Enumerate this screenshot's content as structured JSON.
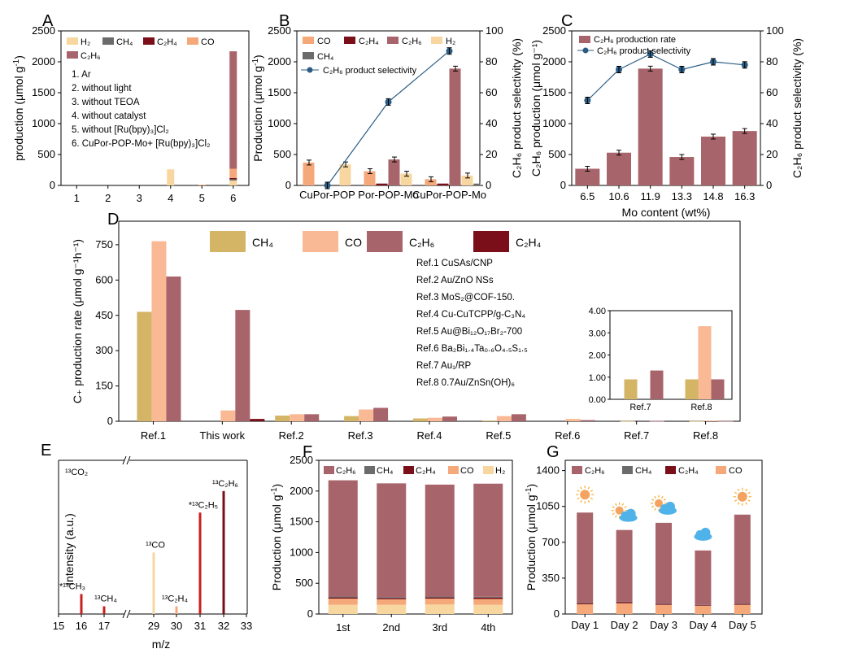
{
  "colors": {
    "h2": "#f7d79f",
    "ch4": "#6b6b6b",
    "c2h4": "#7a0f1a",
    "co": "#f5a87a",
    "c2h6": "#a8646b",
    "ch4_d": "#d4b465",
    "co_d": "#f9b994",
    "sel": "#2b5c83"
  },
  "chart_data": [
    {
      "id": "A",
      "type": "bar",
      "panel_label": "A",
      "ylabel_text": "production (μmol g",
      "ylabel_sup": "-1",
      "ylabel_close": ")",
      "categories": [
        "1",
        "2",
        "3",
        "4",
        "5",
        "6"
      ],
      "ylim": [
        0,
        2500
      ],
      "yticks": [
        "0",
        "500",
        "1000",
        "1500",
        "2000",
        "2500"
      ],
      "stacked": true,
      "series": [
        {
          "key": "h2",
          "name": "H₂",
          "values": [
            0,
            0,
            0,
            260,
            0,
            80
          ]
        },
        {
          "key": "ch4",
          "name": "CH₄",
          "values": [
            0,
            0,
            0,
            0,
            0,
            20
          ]
        },
        {
          "key": "c2h4",
          "name": "C₂H₄",
          "values": [
            0,
            0,
            0,
            0,
            0,
            20
          ]
        },
        {
          "key": "co",
          "name": "CO",
          "values": [
            0,
            0,
            0,
            0,
            12,
            150
          ]
        },
        {
          "key": "c2h6",
          "name": "C₂H₆",
          "values": [
            0,
            0,
            0,
            0,
            0,
            1900
          ]
        }
      ],
      "conditions": [
        "1. Ar",
        "2. without light",
        "3. without TEOA",
        "4. without catalyst",
        "5. without [Ru(bpy)₃]Cl₂",
        "6. CuPor-POP-Mo+ [Ru(bpy)₃]Cl₂"
      ]
    },
    {
      "id": "B",
      "type": "bar",
      "panel_label": "B",
      "ylabel_text": "Production (μmol g",
      "ylabel_sup": "-1",
      "ylabel_close": ")",
      "y2label": "C₂H₆ product selectivity (%)",
      "categories": [
        "CuPor-POP",
        "Por-POP-Mo",
        "CuPor-POP-Mo"
      ],
      "ylim": [
        0,
        2500
      ],
      "yticks": [
        "0",
        "500",
        "1000",
        "1500",
        "2000",
        "2500"
      ],
      "y2lim": [
        0,
        100
      ],
      "y2ticks": [
        "0",
        "20",
        "40",
        "60",
        "80",
        "100"
      ],
      "series": [
        {
          "key": "co",
          "name": "CO",
          "values": [
            370,
            230,
            100
          ]
        },
        {
          "key": "c2h4",
          "name": "C₂H₄",
          "values": [
            0,
            30,
            30
          ]
        },
        {
          "key": "c2h6",
          "name": "C₂H₆",
          "values": [
            0,
            420,
            1890
          ]
        },
        {
          "key": "h2",
          "name": "H₂",
          "values": [
            340,
            190,
            160
          ]
        },
        {
          "key": "ch4",
          "name": "CH₄",
          "values": [
            0,
            0,
            30
          ]
        }
      ],
      "line": {
        "name": "C₂H₆ product selectivity",
        "values": [
          0,
          54,
          87
        ]
      }
    },
    {
      "id": "C",
      "type": "bar",
      "panel_label": "C",
      "ylabel": "C₂H₆ production (μmol g⁻¹)",
      "y2label": "C₂H₆ product selectivity (%)",
      "xlabel": "Mo content (wt%)",
      "categories": [
        "6.5",
        "10.6",
        "11.9",
        "13.3",
        "14.8",
        "16.3"
      ],
      "ylim": [
        0,
        2500
      ],
      "yticks": [
        "0",
        "500",
        "1000",
        "1500",
        "2000",
        "2500"
      ],
      "y2lim": [
        0,
        100
      ],
      "y2ticks": [
        "0",
        "20",
        "40",
        "60",
        "80",
        "100"
      ],
      "series": [
        {
          "key": "c2h6",
          "name": "C₂H₆ production rate",
          "values": [
            270,
            530,
            1890,
            460,
            790,
            880
          ]
        }
      ],
      "line": {
        "name": "C₂H₆ product selectivity",
        "values": [
          55,
          75,
          85,
          75,
          80,
          78
        ]
      }
    },
    {
      "id": "D",
      "type": "bar",
      "panel_label": "D",
      "ylabel": "C₊ production rate (μmol g⁻¹h⁻¹)",
      "categories": [
        "Ref.1",
        "This work",
        "Ref.2",
        "Ref.3",
        "Ref.4",
        "Ref.5",
        "Ref.6",
        "Ref.7",
        "Ref.8"
      ],
      "ylim": [
        0,
        850
      ],
      "yticks": [
        "0",
        "150",
        "300",
        "450",
        "600",
        "750"
      ],
      "series": [
        {
          "key": "ch4_d",
          "name": "CH₄",
          "values": [
            465,
            0,
            24,
            22,
            12,
            3,
            0,
            0.9,
            0.9
          ]
        },
        {
          "key": "co_d",
          "name": "CO",
          "values": [
            765,
            46,
            30,
            50,
            15,
            22,
            10,
            0,
            3.3
          ]
        },
        {
          "key": "c2h6",
          "name": "C₂H₆",
          "values": [
            615,
            473,
            30,
            57,
            20,
            30,
            5,
            1.3,
            0.9
          ]
        },
        {
          "key": "c2h4",
          "name": "C₂H₄",
          "values": [
            0,
            10,
            0,
            0,
            0,
            0,
            0,
            0,
            0
          ]
        }
      ],
      "refs": [
        "Ref.1 CuSAs/CNP",
        "Ref.2 Au/ZnO NSs",
        "Ref.3 MoS₂@COF-150.",
        "Ref.4 Cu-CuTCPP/g-C₃N₄",
        "Ref.5 Au@Bi₁₂O₁₇Br₂-700",
        "Ref.6 Ba₂Bi₁.₄Ta₀.₆O₄.₅S₁.₅",
        "Ref.7 Au₁/RP",
        "Ref.8 0.7Au/ZnSn(OH)₆"
      ],
      "inset": {
        "categories": [
          "Ref.7",
          "Ref.8"
        ],
        "ylim": [
          0,
          4
        ],
        "yticks": [
          "0.00",
          "1.00",
          "2.00",
          "3.00",
          "4.00"
        ]
      }
    },
    {
      "id": "E",
      "type": "bar",
      "panel_label": "E",
      "ylabel": "Intensity (a.u.)",
      "xlabel": "m/z",
      "xticks": [
        "15",
        "16",
        "17",
        "29",
        "30",
        "31",
        "32",
        "33"
      ],
      "peaks": [
        {
          "label": "*¹³CH₃",
          "x": 16,
          "value": 0.13,
          "color": "#c8201e"
        },
        {
          "label": "¹³CH₄",
          "x": 17,
          "value": 0.05,
          "color": "#c8201e"
        },
        {
          "label": "¹³CO",
          "x": 29,
          "value": 0.4,
          "color": "#f7d79f"
        },
        {
          "label": "¹³C₂H₄",
          "x": 30,
          "value": 0.05,
          "color": "#f5a87a"
        },
        {
          "label": "*¹³C₂H₅",
          "x": 31,
          "value": 0.66,
          "color": "#c8201e"
        },
        {
          "label": "¹³C₂H₆",
          "x": 32,
          "value": 0.8,
          "color": "#7a0f1a"
        }
      ],
      "annotation": "¹³CO₂"
    },
    {
      "id": "F",
      "type": "bar",
      "panel_label": "F",
      "ylabel_text": "Production (μmol g",
      "ylabel_sup": "-1",
      "ylabel_close": ")",
      "categories": [
        "1st",
        "2nd",
        "3rd",
        "4th"
      ],
      "ylim": [
        0,
        2500
      ],
      "yticks": [
        "0",
        "500",
        "1000",
        "1500",
        "2000",
        "2500"
      ],
      "stacked": true,
      "series": [
        {
          "key": "h2",
          "name": "H₂",
          "values": [
            150,
            150,
            155,
            150
          ]
        },
        {
          "key": "co",
          "name": "CO",
          "values": [
            100,
            90,
            95,
            95
          ]
        },
        {
          "key": "c2h4",
          "name": "C₂H₄",
          "values": [
            20,
            20,
            20,
            20
          ]
        },
        {
          "key": "ch4",
          "name": "CH₄",
          "values": [
            15,
            15,
            15,
            15
          ]
        },
        {
          "key": "c2h6",
          "name": "C₂H₆",
          "values": [
            1890,
            1850,
            1820,
            1840
          ]
        }
      ]
    },
    {
      "id": "G",
      "type": "bar",
      "panel_label": "G",
      "ylabel_text": "Production (μmol g",
      "ylabel_sup": "-1",
      "ylabel_close": ")",
      "categories": [
        "Day 1",
        "Day 2",
        "Day 3",
        "Day 4",
        "Day 5"
      ],
      "ylim": [
        0,
        1500
      ],
      "yticks": [
        "0",
        "350",
        "700",
        "1050",
        "1400"
      ],
      "stacked": true,
      "series": [
        {
          "key": "co",
          "name": "CO",
          "values": [
            95,
            105,
            90,
            80,
            90
          ]
        },
        {
          "key": "c2h4",
          "name": "C₂H₄",
          "values": [
            8,
            10,
            8,
            6,
            8
          ]
        },
        {
          "key": "ch4",
          "name": "CH₄",
          "values": [
            5,
            5,
            5,
            4,
            5
          ]
        },
        {
          "key": "c2h6",
          "name": "C₂H₆",
          "values": [
            882,
            700,
            787,
            530,
            867
          ]
        }
      ],
      "weather": [
        "sun",
        "sun-cloud",
        "sun-cloud",
        "cloud",
        "sun"
      ]
    }
  ]
}
